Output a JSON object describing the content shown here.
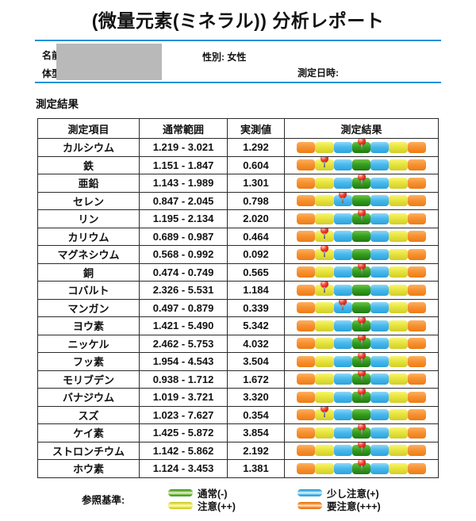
{
  "title": "(微量元素(ミネラル)) 分析レポート",
  "patient": {
    "name_label": "名前:",
    "body_type_label": "体型:",
    "gender_label": "性別: 女性",
    "datetime_label": "測定日時:"
  },
  "section_title": "測定結果",
  "table": {
    "headers": [
      "測定項目",
      "通常範囲",
      "実測値",
      "測定結果"
    ],
    "bar_segments": [
      "orange",
      "yellow",
      "blue",
      "green",
      "blue",
      "yellow",
      "orange"
    ],
    "rows": [
      {
        "item": "カルシウム",
        "range": "1.219 - 3.021",
        "value": "1.292",
        "pin": 0.5,
        "pin_zone": "normal"
      },
      {
        "item": "鉄",
        "range": "1.151 - 1.847",
        "value": "0.604",
        "pin": 0.215,
        "pin_zone": "caution"
      },
      {
        "item": "亜鉛",
        "range": "1.143 - 1.989",
        "value": "1.301",
        "pin": 0.5,
        "pin_zone": "normal"
      },
      {
        "item": "セレン",
        "range": "0.847 - 2.045",
        "value": "0.798",
        "pin": 0.357,
        "pin_zone": "slight"
      },
      {
        "item": "リン",
        "range": "1.195 - 2.134",
        "value": "2.020",
        "pin": 0.5,
        "pin_zone": "normal"
      },
      {
        "item": "カリウム",
        "range": "0.689 - 0.987",
        "value": "0.464",
        "pin": 0.215,
        "pin_zone": "caution"
      },
      {
        "item": "マグネシウム",
        "range": "0.568 - 0.992",
        "value": "0.092",
        "pin": 0.215,
        "pin_zone": "caution"
      },
      {
        "item": "銅",
        "range": "0.474 - 0.749",
        "value": "0.565",
        "pin": 0.5,
        "pin_zone": "normal"
      },
      {
        "item": "コバルト",
        "range": "2.326 - 5.531",
        "value": "1.184",
        "pin": 0.215,
        "pin_zone": "caution"
      },
      {
        "item": "マンガン",
        "range": "0.497 - 0.879",
        "value": "0.339",
        "pin": 0.357,
        "pin_zone": "slight"
      },
      {
        "item": "ヨウ素",
        "range": "1.421 - 5.490",
        "value": "5.342",
        "pin": 0.5,
        "pin_zone": "normal"
      },
      {
        "item": "ニッケル",
        "range": "2.462 - 5.753",
        "value": "4.032",
        "pin": 0.5,
        "pin_zone": "normal"
      },
      {
        "item": "フッ素",
        "range": "1.954 - 4.543",
        "value": "3.504",
        "pin": 0.5,
        "pin_zone": "normal"
      },
      {
        "item": "モリブデン",
        "range": "0.938 - 1.712",
        "value": "1.672",
        "pin": 0.5,
        "pin_zone": "normal"
      },
      {
        "item": "バナジウム",
        "range": "1.019 - 3.721",
        "value": "3.320",
        "pin": 0.5,
        "pin_zone": "normal"
      },
      {
        "item": "スズ",
        "range": "1.023 - 7.627",
        "value": "0.354",
        "pin": 0.215,
        "pin_zone": "caution"
      },
      {
        "item": "ケイ素",
        "range": "1.425 - 5.872",
        "value": "3.854",
        "pin": 0.5,
        "pin_zone": "normal"
      },
      {
        "item": "ストロンチウム",
        "range": "1.142 - 5.862",
        "value": "2.192",
        "pin": 0.5,
        "pin_zone": "normal"
      },
      {
        "item": "ホウ素",
        "range": "1.124 - 3.453",
        "value": "1.381",
        "pin": 0.5,
        "pin_zone": "normal"
      }
    ]
  },
  "legend": {
    "label": "参照基準:",
    "items": [
      {
        "label": "通常(-)",
        "color": "green"
      },
      {
        "label": "少し注意(+)",
        "color": "blue"
      },
      {
        "label": "注意(++)",
        "color": "yellow"
      },
      {
        "label": "要注意(+++)",
        "color": "orange"
      }
    ]
  },
  "colors": {
    "accent_line": "#2191d8",
    "redact_gray": "#b9b9b9",
    "pin_red": "#d40000",
    "segment_orange": "#f58a22",
    "segment_yellow": "#e3df35",
    "segment_blue": "#45b7ec",
    "segment_green": "#33971e"
  }
}
